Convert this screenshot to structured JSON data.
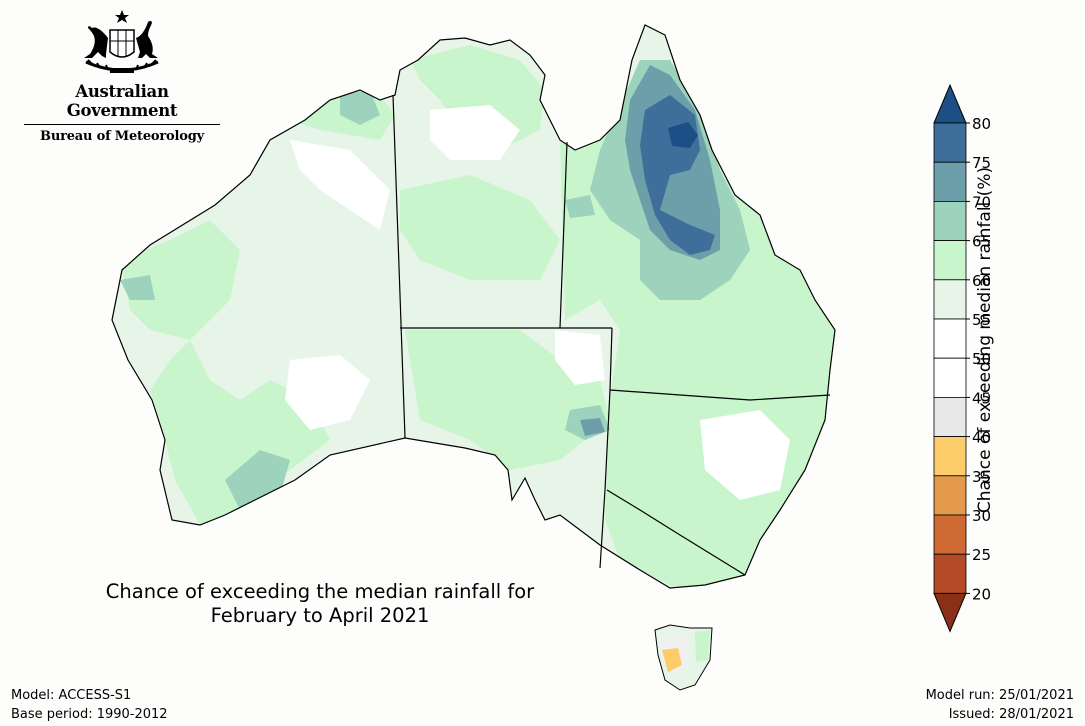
{
  "header": {
    "agency": "Australian Government",
    "bureau": "Bureau of Meteorology"
  },
  "map": {
    "title_line1": "Chance of exceeding the median rainfall for",
    "title_line2": "February to April 2021",
    "region": "Australia"
  },
  "legend": {
    "axis_label": "Chance of exceeding median rainfall (%)",
    "ticks": [
      "80",
      "75",
      "70",
      "65",
      "60",
      "55",
      "50",
      "45",
      "40",
      "35",
      "30",
      "25",
      "20"
    ],
    "bins": [
      {
        "range": "75-80",
        "color": "#3e6f9a"
      },
      {
        "range": "70-75",
        "color": "#6c9faa"
      },
      {
        "range": "65-70",
        "color": "#9dd2bd"
      },
      {
        "range": "60-65",
        "color": "#c8f5cc"
      },
      {
        "range": "55-60",
        "color": "#e7f5e8"
      },
      {
        "range": "50-55",
        "color": "#ffffff"
      },
      {
        "range": "45-50",
        "color": "#ffffff"
      },
      {
        "range": "40-45",
        "color": "#e8e8e8"
      },
      {
        "range": "35-40",
        "color": "#fccc6a"
      },
      {
        "range": "30-35",
        "color": "#e39a4a"
      },
      {
        "range": "25-30",
        "color": "#cf6a34"
      },
      {
        "range": "20-25",
        "color": "#b54a28"
      }
    ],
    "top_arrow_color": "#1c4f86",
    "bottom_arrow_color": "#8a3018"
  },
  "footer": {
    "model": "Model: ACCESS-S1",
    "base_period": "Base period: 1990-2012",
    "model_run": "Model run: 25/01/2021",
    "issued": "Issued: 28/01/2021"
  }
}
